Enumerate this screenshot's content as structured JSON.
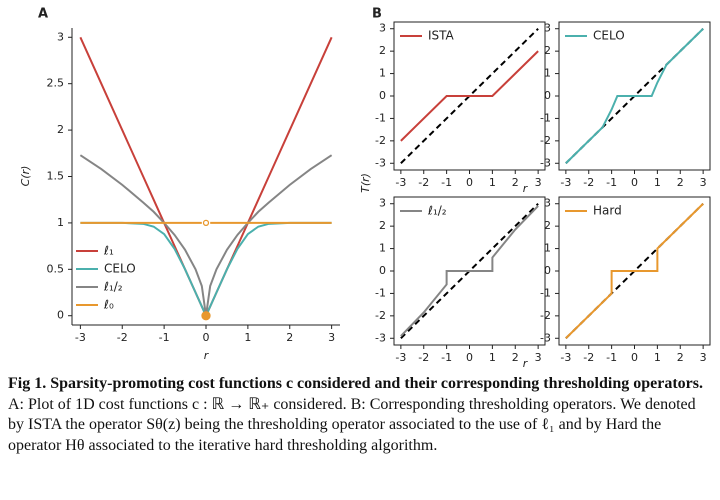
{
  "chart_data": [
    {
      "type": "line",
      "panel": "A",
      "y_label": "C(r)",
      "x_label": "r",
      "x": [
        -3,
        -2.5,
        -2,
        -1.5,
        -1.25,
        -1,
        -0.75,
        -0.5,
        -0.25,
        -0.1,
        0,
        0.1,
        0.25,
        0.5,
        0.75,
        1,
        1.25,
        1.5,
        2,
        2.5,
        3
      ],
      "series": [
        {
          "name": "ℓ₁",
          "color": "#c8403a",
          "values": [
            3,
            2.5,
            2,
            1.5,
            1.25,
            1,
            0.75,
            0.5,
            0.25,
            0.1,
            0,
            0.1,
            0.25,
            0.5,
            0.75,
            1,
            1.25,
            1.5,
            2,
            2.5,
            3
          ]
        },
        {
          "name": "CELO",
          "color": "#4bb0ad",
          "values": [
            1,
            1,
            1,
            0.99,
            0.96,
            0.88,
            0.72,
            0.5,
            0.25,
            0.1,
            0,
            0.1,
            0.25,
            0.5,
            0.72,
            0.88,
            0.96,
            0.99,
            1,
            1,
            1
          ]
        },
        {
          "name": "ℓ₁/₂",
          "color": "#858585",
          "values": [
            1.73,
            1.58,
            1.41,
            1.22,
            1.12,
            1,
            0.87,
            0.71,
            0.5,
            0.32,
            0,
            0.32,
            0.5,
            0.71,
            0.87,
            1,
            1.12,
            1.22,
            1.41,
            1.58,
            1.73
          ]
        },
        {
          "name": "ℓ₀",
          "color": "#e8982e",
          "values": [
            1,
            1,
            1,
            1,
            1,
            1,
            1,
            1,
            1,
            1,
            null,
            1,
            1,
            1,
            1,
            1,
            1,
            1,
            1,
            1,
            1
          ]
        }
      ],
      "points": [
        {
          "x": 0,
          "y": 0,
          "color": "#e8982e",
          "filled": true
        },
        {
          "x": 0,
          "y": 1,
          "color": "#e8982e",
          "filled": false
        }
      ],
      "xlim": [
        -3.2,
        3.2
      ],
      "ylim": [
        -0.1,
        3.1
      ],
      "xticks": [
        -3,
        -2,
        -1,
        0,
        1,
        2,
        3
      ],
      "yticks": [
        0,
        0.5,
        1,
        1.5,
        2,
        2.5,
        3
      ],
      "legend": "lower left"
    },
    {
      "type": "line",
      "panel": "B",
      "y_label": "T(r)",
      "x_label": "r",
      "x": [
        -3,
        -1,
        1,
        3
      ],
      "series": [
        {
          "name": "ISTA",
          "color": "#c8403a",
          "values": [
            -2,
            0,
            0,
            2
          ]
        }
      ],
      "xlim": [
        -3.3,
        3.3
      ],
      "ylim": [
        -3.3,
        3.3
      ],
      "xticks": [
        -3,
        -2,
        -1,
        0,
        1,
        2,
        3
      ],
      "yticks": [
        -3,
        -2,
        -1,
        0,
        1,
        2,
        3
      ],
      "legend": "upper left",
      "diagonal": true
    },
    {
      "type": "line",
      "x": [
        -3,
        -1.4,
        -1,
        -0.75,
        0.75,
        1,
        1.4,
        3
      ],
      "series": [
        {
          "name": "CELO",
          "color": "#4bb0ad",
          "values": [
            -3,
            -1.4,
            -0.6,
            0,
            0,
            0.6,
            1.4,
            3
          ]
        }
      ],
      "xlim": [
        -3.3,
        3.3
      ],
      "ylim": [
        -3.3,
        3.3
      ],
      "xticks": [
        -3,
        -2,
        -1,
        0,
        1,
        2,
        3
      ],
      "yticks": [
        -3,
        -2,
        -1,
        0,
        1,
        2,
        3
      ],
      "legend": "upper left",
      "diagonal": true
    },
    {
      "type": "line",
      "x_label": "r",
      "x": [
        -3,
        -2,
        -1,
        -1,
        1,
        1,
        2,
        3
      ],
      "series": [
        {
          "name": "ℓ₁/₂",
          "color": "#858585",
          "values": [
            -2.9,
            -1.85,
            -0.6,
            0,
            0,
            0.6,
            1.85,
            2.9
          ]
        }
      ],
      "xlim": [
        -3.3,
        3.3
      ],
      "ylim": [
        -3.3,
        3.3
      ],
      "xticks": [
        -3,
        -2,
        -1,
        0,
        1,
        2,
        3
      ],
      "yticks": [
        -3,
        -2,
        -1,
        0,
        1,
        2,
        3
      ],
      "legend": "upper left",
      "diagonal": true
    },
    {
      "type": "line",
      "x": [
        -3,
        -1,
        -1,
        1,
        1,
        3
      ],
      "series": [
        {
          "name": "Hard",
          "color": "#e8982e",
          "values": [
            -3,
            -1,
            0,
            0,
            1,
            3
          ]
        }
      ],
      "xlim": [
        -3.3,
        3.3
      ],
      "ylim": [
        -3.3,
        3.3
      ],
      "xticks": [
        -3,
        -2,
        -1,
        0,
        1,
        2,
        3
      ],
      "yticks": [
        -3,
        -2,
        -1,
        0,
        1,
        2,
        3
      ],
      "legend": "upper left",
      "diagonal": true
    }
  ],
  "caption": {
    "label": "Fig 1.",
    "bold": "Sparsity-promoting cost functions c considered and their corresponding thresholding operators.",
    "text": "A: Plot of 1D cost functions c : ℝ → ℝ₊ considered. B: Corresponding thresholding operators. We denoted by ISTA the operator Sθ(z) being the thresholding operator associated to the use of ℓ₁ and by Hard the operator Hθ associated to the iterative hard thresholding algorithm."
  }
}
